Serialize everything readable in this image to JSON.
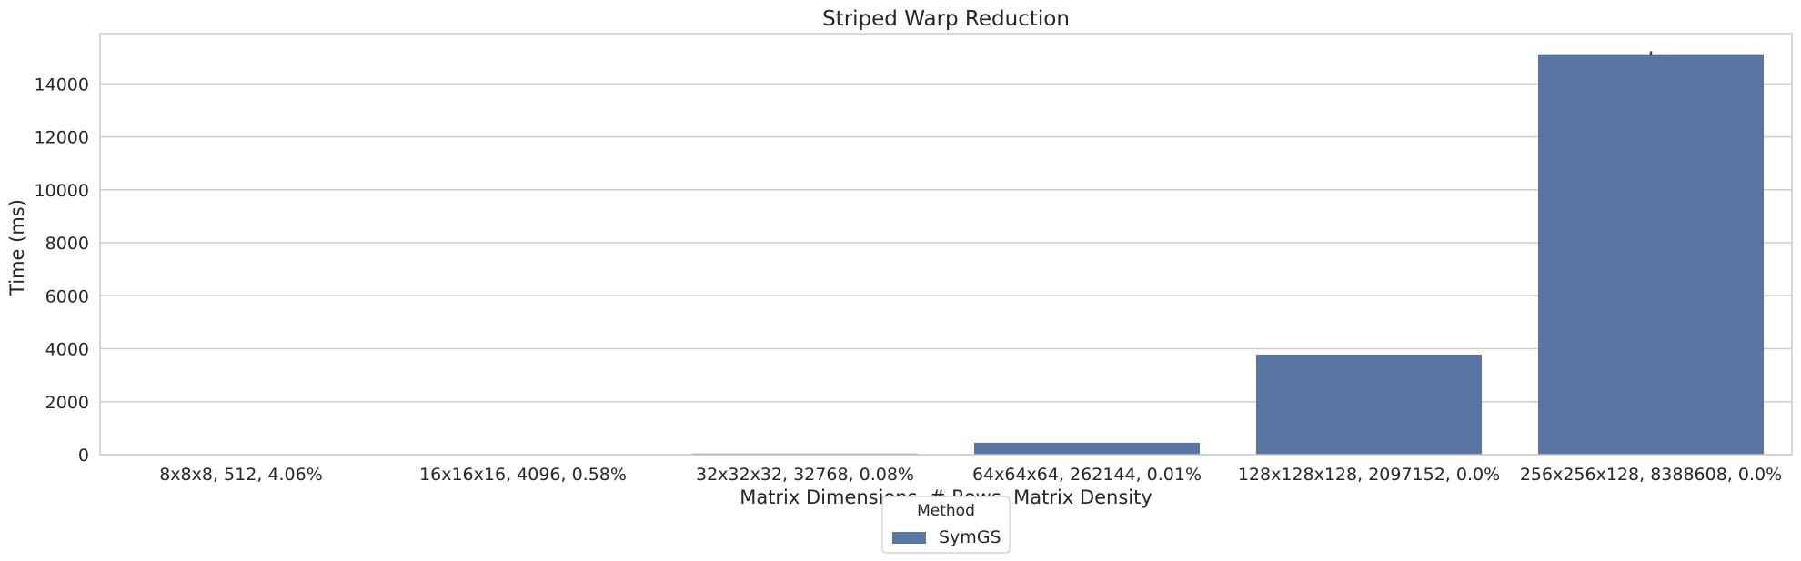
{
  "chart_data": {
    "type": "bar",
    "title": "Striped Warp Reduction",
    "xlabel": "Matrix Dimensions, # Rows, Matrix Density",
    "ylabel": "Time (ms)",
    "categories": [
      "8x8x8, 512, 4.06%",
      "16x16x16, 4096, 0.58%",
      "32x32x32, 32768, 0.08%",
      "64x64x64, 262144, 0.01%",
      "128x128x128, 2097152, 0.0%",
      "256x256x128, 8388608, 0.0%"
    ],
    "series": [
      {
        "name": "SymGS",
        "color": "#5875a4",
        "values": [
          1,
          5,
          40,
          450,
          3780,
          15120
        ],
        "error": [
          null,
          null,
          null,
          null,
          null,
          [
            15070,
            15230
          ]
        ]
      }
    ],
    "yticks": [
      0,
      2000,
      4000,
      6000,
      8000,
      10000,
      12000,
      14000
    ],
    "ylim": [
      0,
      15900
    ],
    "grid": true,
    "legend": {
      "title": "Method",
      "placement": "bottom-center"
    }
  }
}
